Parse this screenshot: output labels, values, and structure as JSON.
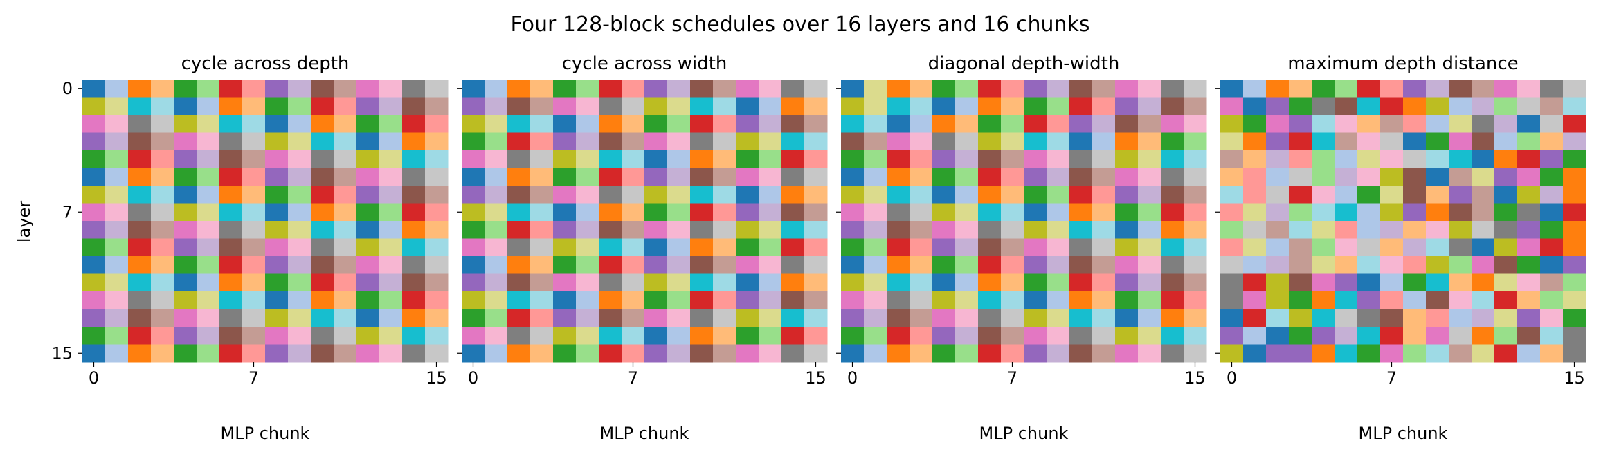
{
  "figure": {
    "title": "Four 128-block schedules over 16 layers and 16 chunks",
    "ylabel": "layer",
    "xlabel": "MLP chunk"
  },
  "palette": [
    "#1f77b4",
    "#aec7e8",
    "#ff7f0e",
    "#ffbb78",
    "#2ca02c",
    "#98df8a",
    "#d62728",
    "#ff9896",
    "#9467bd",
    "#c5b0d5",
    "#8c564b",
    "#c49c94",
    "#e377c2",
    "#f7b6d2",
    "#7f7f7f",
    "#c7c7c7",
    "#bcbd22",
    "#dbdb8d",
    "#17becf",
    "#9edae5"
  ],
  "chart_data": [
    {
      "type": "heatmap",
      "title": "cycle across depth",
      "xlabel": "MLP chunk",
      "ylabel": "layer",
      "xticks": [
        0,
        7,
        15
      ],
      "yticks": [
        0,
        7,
        15
      ],
      "grid": false,
      "values": [
        [
          0,
          1,
          2,
          3,
          4,
          5,
          6,
          7,
          8,
          9,
          10,
          11,
          12,
          13,
          14,
          15
        ],
        [
          16,
          17,
          18,
          19,
          0,
          1,
          2,
          3,
          4,
          5,
          6,
          7,
          8,
          9,
          10,
          11
        ],
        [
          12,
          13,
          14,
          15,
          16,
          17,
          18,
          19,
          0,
          1,
          2,
          3,
          4,
          5,
          6,
          7
        ],
        [
          8,
          9,
          10,
          11,
          12,
          13,
          14,
          15,
          16,
          17,
          18,
          19,
          0,
          1,
          2,
          3
        ],
        [
          4,
          5,
          6,
          7,
          8,
          9,
          10,
          11,
          12,
          13,
          14,
          15,
          16,
          17,
          18,
          19
        ],
        [
          0,
          1,
          2,
          3,
          4,
          5,
          6,
          7,
          8,
          9,
          10,
          11,
          12,
          13,
          14,
          15
        ],
        [
          16,
          17,
          18,
          19,
          0,
          1,
          2,
          3,
          4,
          5,
          6,
          7,
          8,
          9,
          10,
          11
        ],
        [
          12,
          13,
          14,
          15,
          16,
          17,
          18,
          19,
          0,
          1,
          2,
          3,
          4,
          5,
          6,
          7
        ],
        [
          8,
          9,
          10,
          11,
          12,
          13,
          14,
          15,
          16,
          17,
          18,
          19,
          0,
          1,
          2,
          3
        ],
        [
          4,
          5,
          6,
          7,
          8,
          9,
          10,
          11,
          12,
          13,
          14,
          15,
          16,
          17,
          18,
          19
        ],
        [
          0,
          1,
          2,
          3,
          4,
          5,
          6,
          7,
          8,
          9,
          10,
          11,
          12,
          13,
          14,
          15
        ],
        [
          16,
          17,
          18,
          19,
          0,
          1,
          2,
          3,
          4,
          5,
          6,
          7,
          8,
          9,
          10,
          11
        ],
        [
          12,
          13,
          14,
          15,
          16,
          17,
          18,
          19,
          0,
          1,
          2,
          3,
          4,
          5,
          6,
          7
        ],
        [
          8,
          9,
          10,
          11,
          12,
          13,
          14,
          15,
          16,
          17,
          18,
          19,
          0,
          1,
          2,
          3
        ],
        [
          4,
          5,
          6,
          7,
          8,
          9,
          10,
          11,
          12,
          13,
          14,
          15,
          16,
          17,
          18,
          19
        ],
        [
          0,
          1,
          2,
          3,
          4,
          5,
          6,
          7,
          8,
          9,
          10,
          11,
          12,
          13,
          14,
          15
        ]
      ]
    },
    {
      "type": "heatmap",
      "title": "cycle across width",
      "xlabel": "MLP chunk",
      "ylabel": "",
      "xticks": [
        0,
        7,
        15
      ],
      "yticks": [],
      "grid": false,
      "values": [
        [
          0,
          1,
          2,
          3,
          4,
          5,
          6,
          7,
          8,
          9,
          10,
          11,
          12,
          13,
          14,
          15
        ],
        [
          8,
          9,
          10,
          11,
          12,
          13,
          14,
          15,
          16,
          17,
          18,
          19,
          0,
          1,
          2,
          3
        ],
        [
          16,
          17,
          18,
          19,
          0,
          1,
          2,
          3,
          4,
          5,
          6,
          7,
          8,
          9,
          10,
          11
        ],
        [
          4,
          5,
          6,
          7,
          8,
          9,
          10,
          11,
          12,
          13,
          14,
          15,
          16,
          17,
          18,
          19
        ],
        [
          12,
          13,
          14,
          15,
          16,
          17,
          18,
          19,
          0,
          1,
          2,
          3,
          4,
          5,
          6,
          7
        ],
        [
          0,
          1,
          2,
          3,
          4,
          5,
          6,
          7,
          8,
          9,
          10,
          11,
          12,
          13,
          14,
          15
        ],
        [
          8,
          9,
          10,
          11,
          12,
          13,
          14,
          15,
          16,
          17,
          18,
          19,
          0,
          1,
          2,
          3
        ],
        [
          16,
          17,
          18,
          19,
          0,
          1,
          2,
          3,
          4,
          5,
          6,
          7,
          8,
          9,
          10,
          11
        ],
        [
          4,
          5,
          6,
          7,
          8,
          9,
          10,
          11,
          12,
          13,
          14,
          15,
          16,
          17,
          18,
          19
        ],
        [
          12,
          13,
          14,
          15,
          16,
          17,
          18,
          19,
          0,
          1,
          2,
          3,
          4,
          5,
          6,
          7
        ],
        [
          0,
          1,
          2,
          3,
          4,
          5,
          6,
          7,
          8,
          9,
          10,
          11,
          12,
          13,
          14,
          15
        ],
        [
          8,
          9,
          10,
          11,
          12,
          13,
          14,
          15,
          16,
          17,
          18,
          19,
          0,
          1,
          2,
          3
        ],
        [
          16,
          17,
          18,
          19,
          0,
          1,
          2,
          3,
          4,
          5,
          6,
          7,
          8,
          9,
          10,
          11
        ],
        [
          4,
          5,
          6,
          7,
          8,
          9,
          10,
          11,
          12,
          13,
          14,
          15,
          16,
          17,
          18,
          19
        ],
        [
          12,
          13,
          14,
          15,
          16,
          17,
          18,
          19,
          0,
          1,
          2,
          3,
          4,
          5,
          6,
          7
        ],
        [
          0,
          1,
          2,
          3,
          4,
          5,
          6,
          7,
          8,
          9,
          10,
          11,
          12,
          13,
          14,
          15
        ]
      ]
    },
    {
      "type": "heatmap",
      "title": "diagonal depth-width",
      "xlabel": "MLP chunk",
      "ylabel": "",
      "xticks": [
        0,
        7,
        15
      ],
      "yticks": [],
      "grid": false,
      "values": [
        [
          0,
          17,
          2,
          3,
          4,
          5,
          6,
          7,
          8,
          9,
          10,
          11,
          12,
          13,
          14,
          15
        ],
        [
          16,
          17,
          18,
          19,
          0,
          1,
          2,
          3,
          4,
          5,
          6,
          7,
          8,
          9,
          10,
          11
        ],
        [
          18,
          19,
          0,
          1,
          2,
          3,
          4,
          5,
          6,
          7,
          8,
          9,
          10,
          11,
          12,
          13
        ],
        [
          10,
          11,
          12,
          13,
          14,
          15,
          16,
          17,
          18,
          19,
          0,
          1,
          2,
          3,
          4,
          5
        ],
        [
          4,
          5,
          6,
          7,
          8,
          9,
          10,
          11,
          12,
          13,
          14,
          15,
          16,
          17,
          18,
          19
        ],
        [
          0,
          1,
          2,
          3,
          4,
          5,
          6,
          7,
          8,
          9,
          10,
          11,
          12,
          13,
          14,
          15
        ],
        [
          16,
          17,
          18,
          19,
          0,
          1,
          2,
          3,
          4,
          5,
          6,
          7,
          8,
          9,
          10,
          11
        ],
        [
          12,
          13,
          14,
          15,
          16,
          17,
          18,
          19,
          0,
          1,
          2,
          3,
          4,
          5,
          6,
          7
        ],
        [
          8,
          9,
          10,
          11,
          12,
          13,
          14,
          15,
          16,
          17,
          18,
          19,
          0,
          1,
          2,
          3
        ],
        [
          4,
          5,
          6,
          7,
          8,
          9,
          10,
          11,
          12,
          13,
          14,
          15,
          16,
          17,
          18,
          19
        ],
        [
          0,
          1,
          2,
          3,
          4,
          5,
          6,
          7,
          8,
          9,
          10,
          11,
          12,
          13,
          14,
          15
        ],
        [
          16,
          17,
          18,
          19,
          0,
          1,
          2,
          3,
          4,
          5,
          6,
          7,
          8,
          9,
          10,
          11
        ],
        [
          12,
          13,
          14,
          15,
          16,
          17,
          18,
          19,
          0,
          1,
          2,
          3,
          4,
          5,
          6,
          7
        ],
        [
          8,
          9,
          10,
          11,
          12,
          13,
          14,
          15,
          16,
          17,
          18,
          19,
          0,
          1,
          2,
          3
        ],
        [
          4,
          5,
          6,
          7,
          8,
          9,
          10,
          11,
          12,
          13,
          14,
          15,
          16,
          17,
          18,
          19
        ],
        [
          0,
          1,
          2,
          3,
          4,
          5,
          6,
          7,
          8,
          9,
          10,
          11,
          12,
          13,
          14,
          15
        ]
      ]
    },
    {
      "type": "heatmap",
      "title": "maximum depth distance",
      "xlabel": "MLP chunk",
      "ylabel": "",
      "xticks": [
        0,
        7,
        15
      ],
      "yticks": [],
      "grid": false,
      "values": [
        [
          0,
          1,
          2,
          3,
          4,
          5,
          6,
          7,
          8,
          9,
          10,
          11,
          12,
          13,
          14,
          15
        ],
        [
          12,
          0,
          8,
          4,
          14,
          10,
          18,
          6,
          2,
          16,
          1,
          9,
          5,
          15,
          11,
          19
        ],
        [
          16,
          4,
          12,
          8,
          19,
          13,
          3,
          11,
          7,
          1,
          17,
          14,
          9,
          0,
          15,
          6
        ],
        [
          17,
          2,
          8,
          6,
          18,
          11,
          13,
          15,
          0,
          4,
          12,
          10,
          1,
          5,
          3,
          9
        ],
        [
          11,
          3,
          9,
          7,
          5,
          1,
          17,
          13,
          15,
          19,
          18,
          0,
          2,
          6,
          8,
          4
        ],
        [
          3,
          7,
          1,
          15,
          5,
          9,
          13,
          16,
          10,
          0,
          11,
          17,
          8,
          12,
          4,
          2
        ],
        [
          19,
          7,
          15,
          6,
          13,
          1,
          4,
          17,
          10,
          3,
          8,
          11,
          0,
          16,
          9,
          2
        ],
        [
          7,
          17,
          9,
          5,
          19,
          18,
          1,
          16,
          8,
          2,
          10,
          11,
          4,
          14,
          0,
          6
        ],
        [
          5,
          15,
          11,
          19,
          17,
          7,
          1,
          9,
          3,
          13,
          16,
          15,
          14,
          8,
          4,
          2
        ],
        [
          7,
          17,
          1,
          11,
          5,
          13,
          15,
          3,
          9,
          19,
          14,
          0,
          16,
          12,
          6,
          2
        ],
        [
          15,
          1,
          9,
          11,
          17,
          3,
          19,
          13,
          7,
          16,
          5,
          12,
          10,
          4,
          0,
          8
        ],
        [
          14,
          6,
          16,
          10,
          12,
          8,
          0,
          1,
          4,
          18,
          3,
          2,
          17,
          13,
          11,
          5
        ],
        [
          14,
          12,
          16,
          4,
          2,
          18,
          8,
          7,
          1,
          10,
          13,
          19,
          6,
          3,
          5,
          17
        ],
        [
          0,
          6,
          19,
          16,
          18,
          15,
          14,
          10,
          3,
          7,
          1,
          9,
          17,
          8,
          13,
          4
        ],
        [
          8,
          1,
          0,
          4,
          8,
          9,
          18,
          6,
          3,
          12,
          15,
          2,
          5,
          10,
          19,
          14
        ],
        [
          16,
          0,
          8,
          8,
          2,
          18,
          4,
          12,
          5,
          19,
          11,
          17,
          6,
          1,
          3,
          14
        ]
      ]
    }
  ]
}
